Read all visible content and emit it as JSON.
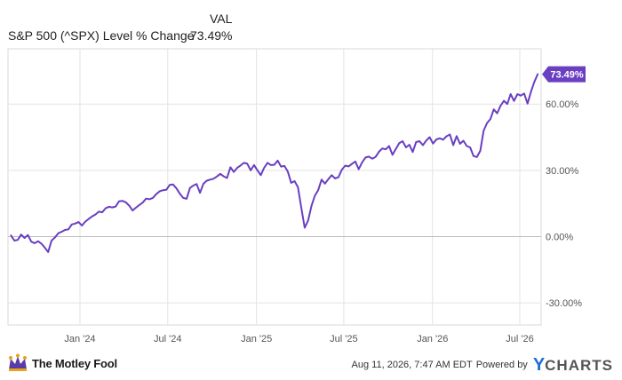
{
  "chart_data": {
    "type": "line",
    "column_label": "VAL",
    "series": [
      {
        "name": "S&P 500 (^SPX) Level % Change",
        "last_value_label": "73.49%",
        "color": "#6a3fc1"
      }
    ],
    "x_ticks": [
      "Jan '24",
      "Jul '24",
      "Jan '25",
      "Jul '25",
      "Jan '26",
      "Jul '26"
    ],
    "y_ticks": [
      "60.00%",
      "30.00%",
      "0.00%",
      "-30.00%"
    ],
    "ylim": [
      -40,
      85
    ],
    "grid": true,
    "points": [
      [
        "2023-08-11",
        0.5
      ],
      [
        "2023-08-18",
        -1.8
      ],
      [
        "2023-08-25",
        -1.5
      ],
      [
        "2023-09-01",
        0.9
      ],
      [
        "2023-09-08",
        -0.6
      ],
      [
        "2023-09-15",
        0.7
      ],
      [
        "2023-09-22",
        -2.3
      ],
      [
        "2023-09-29",
        -3.0
      ],
      [
        "2023-10-06",
        -2.1
      ],
      [
        "2023-10-13",
        -3.2
      ],
      [
        "2023-10-20",
        -5.0
      ],
      [
        "2023-10-27",
        -7.0
      ],
      [
        "2023-11-03",
        -1.8
      ],
      [
        "2023-11-10",
        -0.4
      ],
      [
        "2023-11-17",
        1.5
      ],
      [
        "2023-11-24",
        2.2
      ],
      [
        "2023-12-01",
        3.0
      ],
      [
        "2023-12-08",
        3.3
      ],
      [
        "2023-12-15",
        5.5
      ],
      [
        "2023-12-22",
        5.9
      ],
      [
        "2023-12-29",
        6.6
      ],
      [
        "2024-01-05",
        5.0
      ],
      [
        "2024-01-12",
        6.8
      ],
      [
        "2024-01-19",
        8.0
      ],
      [
        "2024-01-26",
        9.1
      ],
      [
        "2024-02-02",
        10.0
      ],
      [
        "2024-02-09",
        11.3
      ],
      [
        "2024-02-16",
        11.0
      ],
      [
        "2024-02-23",
        12.8
      ],
      [
        "2024-03-01",
        13.5
      ],
      [
        "2024-03-08",
        13.2
      ],
      [
        "2024-03-15",
        13.6
      ],
      [
        "2024-03-22",
        16.0
      ],
      [
        "2024-03-29",
        16.2
      ],
      [
        "2024-04-05",
        15.5
      ],
      [
        "2024-04-12",
        14.0
      ],
      [
        "2024-04-19",
        11.8
      ],
      [
        "2024-04-26",
        13.1
      ],
      [
        "2024-05-03",
        14.3
      ],
      [
        "2024-05-10",
        15.4
      ],
      [
        "2024-05-17",
        17.2
      ],
      [
        "2024-05-24",
        16.9
      ],
      [
        "2024-05-31",
        17.5
      ],
      [
        "2024-06-07",
        19.2
      ],
      [
        "2024-06-14",
        20.5
      ],
      [
        "2024-06-21",
        21.0
      ],
      [
        "2024-06-28",
        21.2
      ],
      [
        "2024-07-05",
        23.4
      ],
      [
        "2024-07-12",
        23.6
      ],
      [
        "2024-07-19",
        21.8
      ],
      [
        "2024-07-26",
        19.4
      ],
      [
        "2024-08-02",
        17.5
      ],
      [
        "2024-08-09",
        17.1
      ],
      [
        "2024-08-16",
        22.0
      ],
      [
        "2024-08-23",
        23.1
      ],
      [
        "2024-08-30",
        23.8
      ],
      [
        "2024-09-06",
        19.8
      ],
      [
        "2024-09-13",
        23.9
      ],
      [
        "2024-09-20",
        25.3
      ],
      [
        "2024-09-27",
        25.8
      ],
      [
        "2024-10-04",
        26.2
      ],
      [
        "2024-10-11",
        27.2
      ],
      [
        "2024-10-18",
        28.4
      ],
      [
        "2024-10-25",
        27.3
      ],
      [
        "2024-11-01",
        26.5
      ],
      [
        "2024-11-08",
        31.4
      ],
      [
        "2024-11-15",
        29.3
      ],
      [
        "2024-11-22",
        31.1
      ],
      [
        "2024-11-29",
        32.2
      ],
      [
        "2024-12-06",
        33.4
      ],
      [
        "2024-12-13",
        33.0
      ],
      [
        "2024-12-20",
        30.0
      ],
      [
        "2024-12-27",
        32.4
      ],
      [
        "2025-01-03",
        30.0
      ],
      [
        "2025-01-10",
        27.8
      ],
      [
        "2025-01-17",
        31.2
      ],
      [
        "2025-01-24",
        33.4
      ],
      [
        "2025-01-31",
        32.4
      ],
      [
        "2025-02-07",
        32.5
      ],
      [
        "2025-02-14",
        34.4
      ],
      [
        "2025-02-21",
        31.7
      ],
      [
        "2025-02-28",
        32.0
      ],
      [
        "2025-03-07",
        29.4
      ],
      [
        "2025-03-14",
        24.3
      ],
      [
        "2025-03-21",
        25.1
      ],
      [
        "2025-03-28",
        22.4
      ],
      [
        "2025-04-04",
        13.0
      ],
      [
        "2025-04-11",
        4.0
      ],
      [
        "2025-04-18",
        7.2
      ],
      [
        "2025-04-25",
        13.8
      ],
      [
        "2025-05-02",
        18.5
      ],
      [
        "2025-05-09",
        21.0
      ],
      [
        "2025-05-16",
        25.8
      ],
      [
        "2025-05-23",
        24.0
      ],
      [
        "2025-05-30",
        26.0
      ],
      [
        "2025-06-06",
        27.8
      ],
      [
        "2025-06-13",
        26.3
      ],
      [
        "2025-06-20",
        26.9
      ],
      [
        "2025-06-27",
        30.3
      ],
      [
        "2025-07-04",
        32.1
      ],
      [
        "2025-07-11",
        31.8
      ],
      [
        "2025-07-18",
        32.9
      ],
      [
        "2025-07-25",
        34.0
      ],
      [
        "2025-08-01",
        30.5
      ],
      [
        "2025-08-08",
        33.6
      ],
      [
        "2025-08-15",
        35.8
      ],
      [
        "2025-08-22",
        36.2
      ],
      [
        "2025-08-29",
        35.3
      ],
      [
        "2025-09-05",
        36.1
      ],
      [
        "2025-09-12",
        38.4
      ],
      [
        "2025-09-19",
        39.9
      ],
      [
        "2025-09-26",
        39.5
      ],
      [
        "2025-10-03",
        41.0
      ],
      [
        "2025-10-10",
        37.0
      ],
      [
        "2025-10-17",
        39.7
      ],
      [
        "2025-10-24",
        42.3
      ],
      [
        "2025-10-31",
        43.2
      ],
      [
        "2025-11-07",
        40.4
      ],
      [
        "2025-11-14",
        41.6
      ],
      [
        "2025-11-21",
        38.3
      ],
      [
        "2025-11-28",
        42.8
      ],
      [
        "2025-12-05",
        43.2
      ],
      [
        "2025-12-12",
        41.4
      ],
      [
        "2025-12-19",
        43.5
      ],
      [
        "2025-12-26",
        45.0
      ],
      [
        "2026-01-02",
        42.1
      ],
      [
        "2026-01-09",
        44.0
      ],
      [
        "2026-01-16",
        44.5
      ],
      [
        "2026-01-23",
        43.9
      ],
      [
        "2026-01-30",
        45.4
      ],
      [
        "2026-02-06",
        46.2
      ],
      [
        "2026-02-13",
        41.4
      ],
      [
        "2026-02-20",
        45.5
      ],
      [
        "2026-02-27",
        42.0
      ],
      [
        "2026-03-06",
        43.4
      ],
      [
        "2026-03-13",
        41.0
      ],
      [
        "2026-03-20",
        40.4
      ],
      [
        "2026-03-27",
        36.5
      ],
      [
        "2026-04-03",
        36.0
      ],
      [
        "2026-04-10",
        38.8
      ],
      [
        "2026-04-17",
        48.0
      ],
      [
        "2026-04-24",
        51.4
      ],
      [
        "2026-05-01",
        53.2
      ],
      [
        "2026-05-08",
        57.6
      ],
      [
        "2026-05-15",
        55.8
      ],
      [
        "2026-05-22",
        59.2
      ],
      [
        "2026-05-29",
        61.5
      ],
      [
        "2026-06-05",
        60.0
      ],
      [
        "2026-06-12",
        64.5
      ],
      [
        "2026-06-19",
        61.4
      ],
      [
        "2026-06-26",
        64.5
      ],
      [
        "2026-07-03",
        63.8
      ],
      [
        "2026-07-10",
        64.8
      ],
      [
        "2026-07-17",
        60.2
      ],
      [
        "2026-07-24",
        65.5
      ],
      [
        "2026-07-31",
        70.0
      ],
      [
        "2026-08-07",
        73.49
      ]
    ]
  },
  "footer": {
    "brand_name": "The Motley Fool",
    "timestamp": "Aug 11, 2026, 7:47 AM EDT",
    "powered_by": "Powered by",
    "ycharts_logo": "YCHARTS"
  }
}
